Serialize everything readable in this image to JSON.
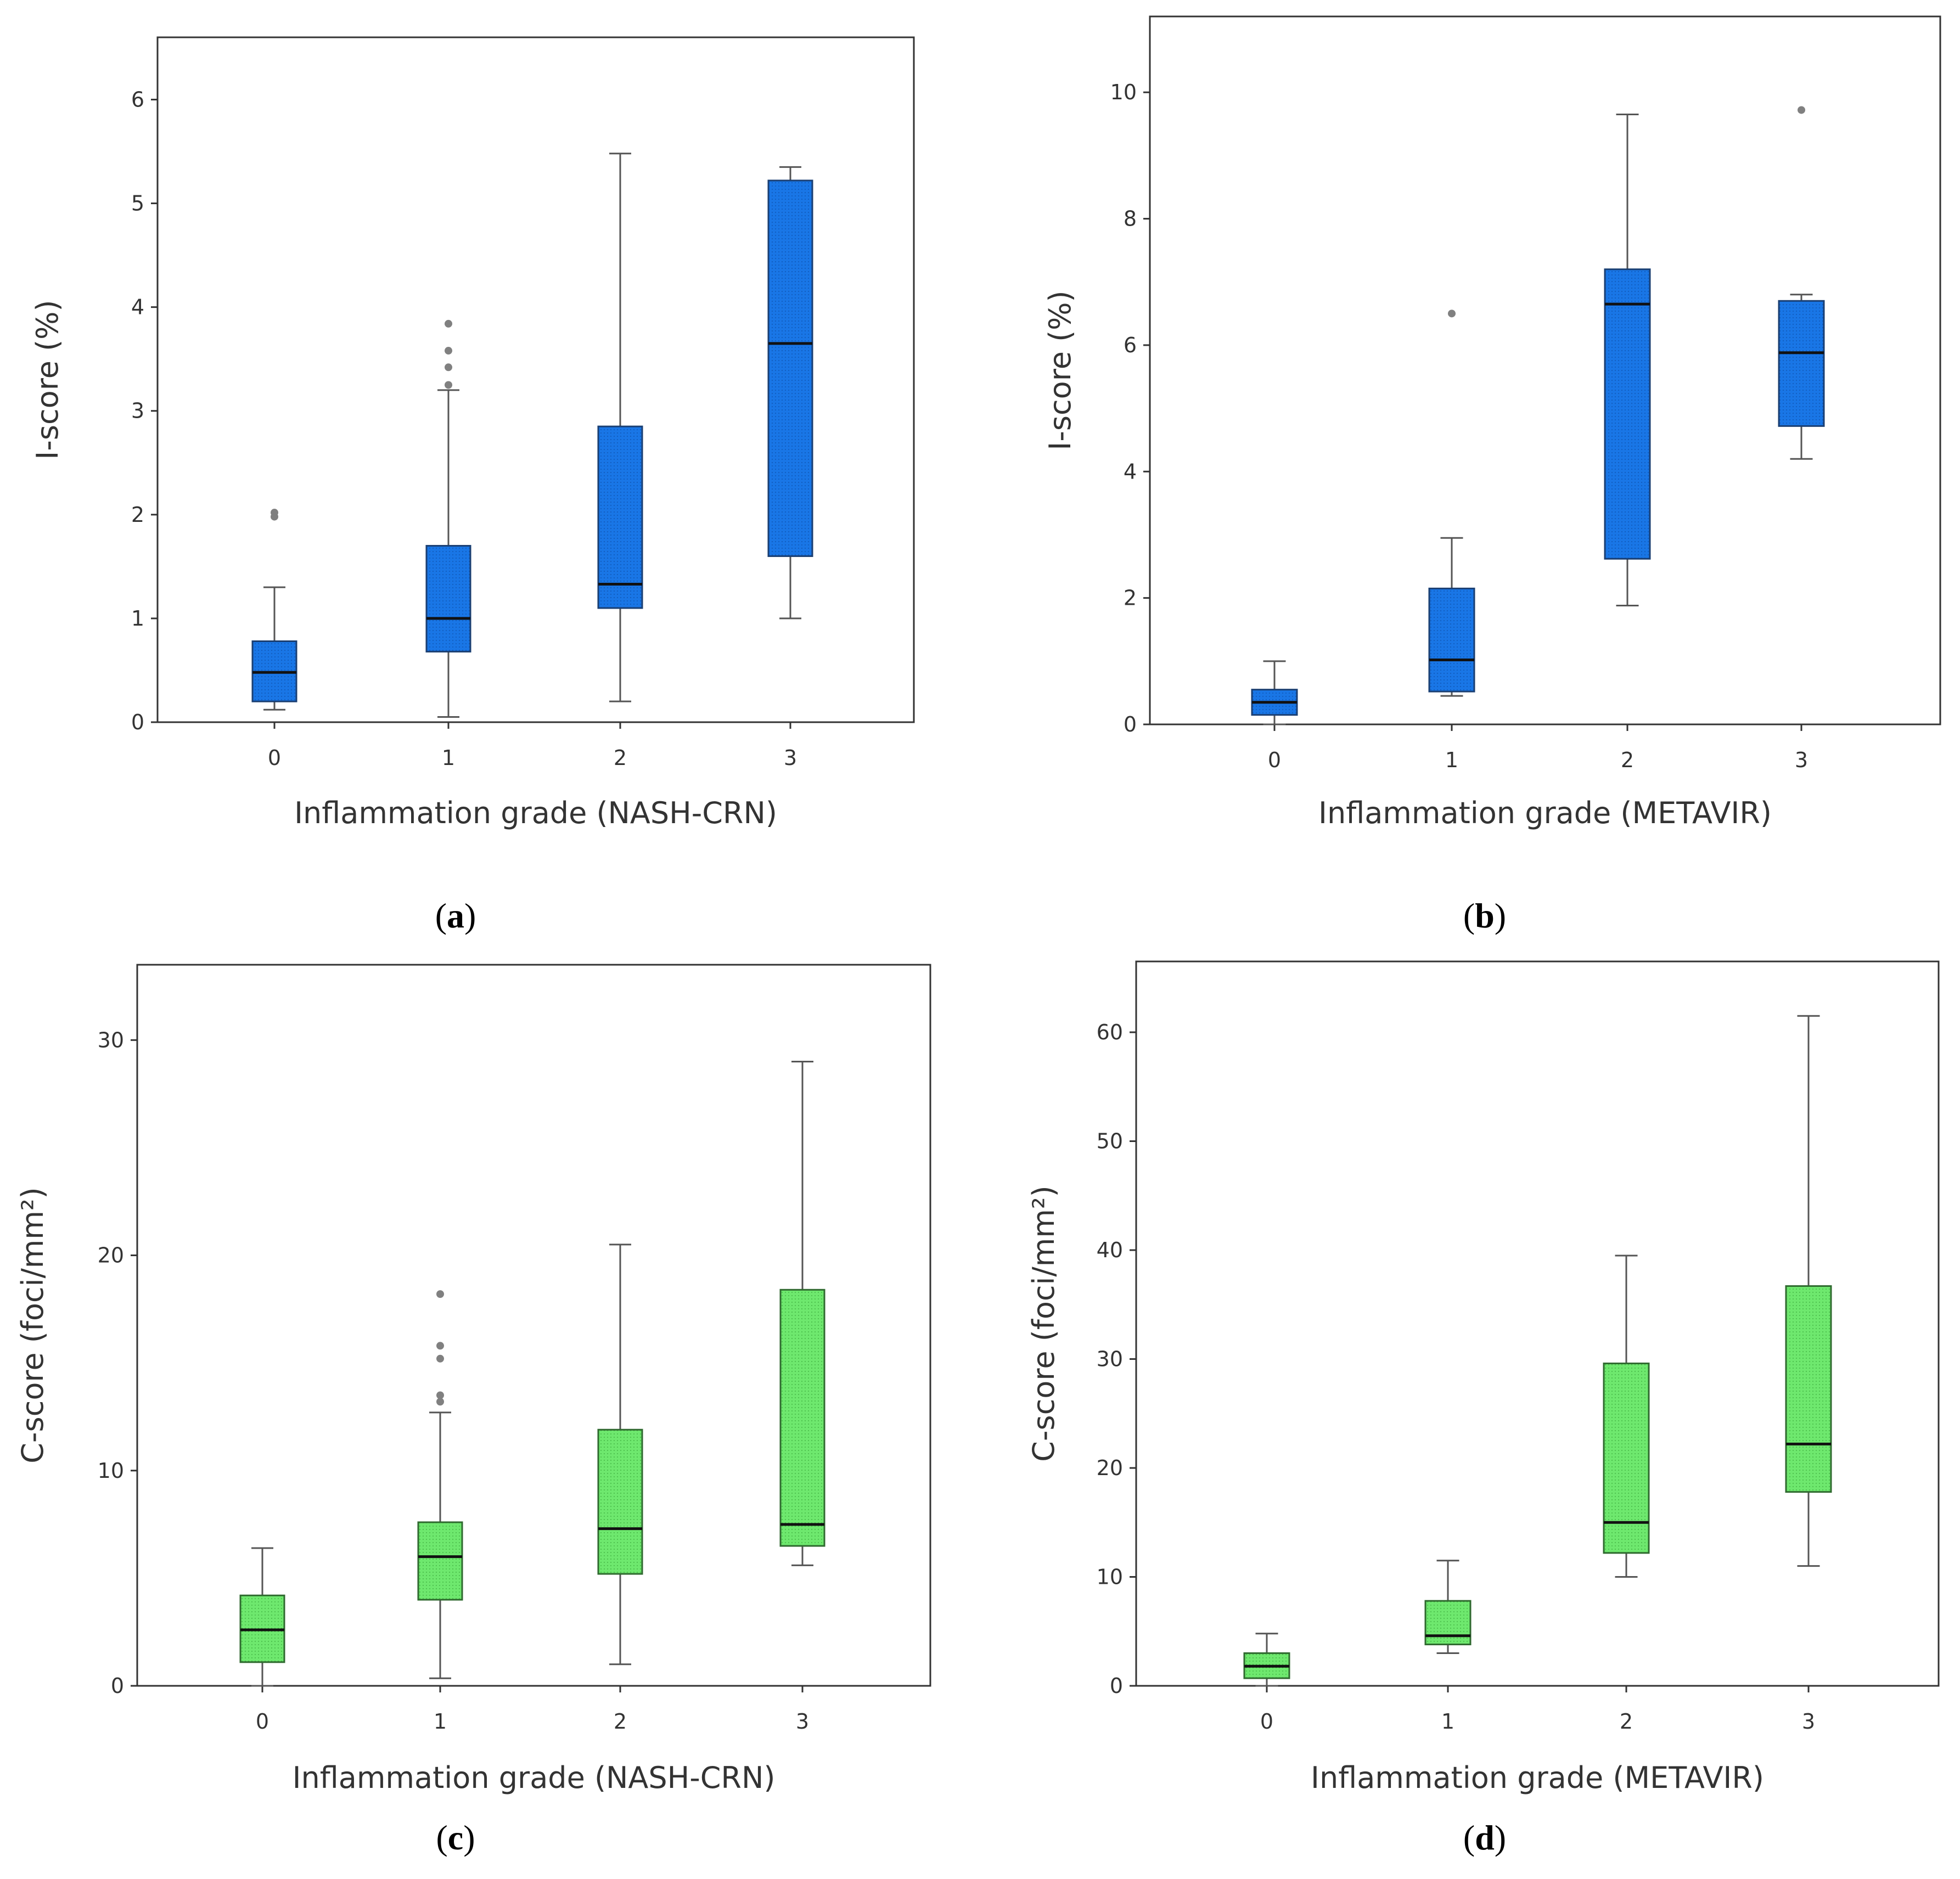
{
  "colors": {
    "blue_box": "#1976e6",
    "blue_stroke": "#1a3f73",
    "green_box": "#6ee86e",
    "green_stroke": "#2f6a2f",
    "whisker": "#555555",
    "outlier": "#808080",
    "median": "#111111",
    "frame": "#333333"
  },
  "chart_data": [
    {
      "type": "box",
      "panel": "a",
      "panel_label": "a",
      "xlabel": "Inflammation grade (NASH-CRN)",
      "ylabel": "I-score (%)",
      "ylim": [
        0,
        6.6
      ],
      "yticks": [
        0,
        1,
        2,
        3,
        4,
        5,
        6
      ],
      "categories": [
        "0",
        "1",
        "2",
        "3"
      ],
      "color": "blue",
      "boxes": [
        {
          "category": "0",
          "whisker_low": 0.12,
          "q1": 0.2,
          "median": 0.48,
          "q3": 0.78,
          "whisker_high": 1.3,
          "outliers": [
            1.98,
            2.02
          ]
        },
        {
          "category": "1",
          "whisker_low": 0.05,
          "q1": 0.68,
          "median": 1.0,
          "q3": 1.7,
          "whisker_high": 3.2,
          "outliers": [
            3.25,
            3.42,
            3.58,
            3.84
          ]
        },
        {
          "category": "2",
          "whisker_low": 0.2,
          "q1": 1.1,
          "median": 1.33,
          "q3": 2.85,
          "whisker_high": 5.48,
          "outliers": []
        },
        {
          "category": "3",
          "whisker_low": 1.0,
          "q1": 1.6,
          "median": 3.65,
          "q3": 5.22,
          "whisker_high": 5.35,
          "outliers": []
        }
      ]
    },
    {
      "type": "box",
      "panel": "b",
      "panel_label": "b",
      "xlabel": "Inflammation grade (METAVIR)",
      "ylabel": "I-score (%)",
      "ylim": [
        0,
        11.2
      ],
      "yticks": [
        0,
        2,
        4,
        6,
        8,
        10
      ],
      "categories": [
        "0",
        "1",
        "2",
        "3"
      ],
      "color": "blue",
      "boxes": [
        {
          "category": "0",
          "whisker_low": 0.0,
          "q1": 0.15,
          "median": 0.35,
          "q3": 0.55,
          "whisker_high": 1.0,
          "outliers": []
        },
        {
          "category": "1",
          "whisker_low": 0.45,
          "q1": 0.52,
          "median": 1.02,
          "q3": 2.15,
          "whisker_high": 2.95,
          "outliers": [
            6.5
          ]
        },
        {
          "category": "2",
          "whisker_low": 1.88,
          "q1": 2.62,
          "median": 6.65,
          "q3": 7.2,
          "whisker_high": 9.65,
          "outliers": []
        },
        {
          "category": "3",
          "whisker_low": 4.2,
          "q1": 4.72,
          "median": 5.88,
          "q3": 6.7,
          "whisker_high": 6.8,
          "outliers": [
            9.72
          ]
        }
      ]
    },
    {
      "type": "box",
      "panel": "c",
      "panel_label": "c",
      "xlabel": "Inflammation grade (NASH-CRN)",
      "ylabel": "C-score (foci/mm²)",
      "ylim": [
        0,
        33.5
      ],
      "yticks": [
        0,
        10,
        20,
        30
      ],
      "categories": [
        "0",
        "1",
        "2",
        "3"
      ],
      "color": "green",
      "boxes": [
        {
          "category": "0",
          "whisker_low": 0.0,
          "q1": 1.1,
          "median": 2.6,
          "q3": 4.2,
          "whisker_high": 6.4,
          "outliers": []
        },
        {
          "category": "1",
          "whisker_low": 0.35,
          "q1": 4.0,
          "median": 6.0,
          "q3": 7.6,
          "whisker_high": 12.7,
          "outliers": [
            13.2,
            13.5,
            15.2,
            15.8,
            18.2
          ]
        },
        {
          "category": "2",
          "whisker_low": 1.0,
          "q1": 5.2,
          "median": 7.3,
          "q3": 11.9,
          "whisker_high": 20.5,
          "outliers": []
        },
        {
          "category": "3",
          "whisker_low": 5.6,
          "q1": 6.5,
          "median": 7.5,
          "q3": 18.4,
          "whisker_high": 29.0,
          "outliers": []
        }
      ]
    },
    {
      "type": "box",
      "panel": "d",
      "panel_label": "d",
      "xlabel": "Inflammation grade (METAVIR)",
      "ylabel": "C-score (foci/mm²)",
      "ylim": [
        0,
        66.5
      ],
      "yticks": [
        0,
        10,
        20,
        30,
        40,
        50,
        60
      ],
      "categories": [
        "0",
        "1",
        "2",
        "3"
      ],
      "color": "green",
      "boxes": [
        {
          "category": "0",
          "whisker_low": 0.0,
          "q1": 0.7,
          "median": 1.8,
          "q3": 3.0,
          "whisker_high": 4.8,
          "outliers": []
        },
        {
          "category": "1",
          "whisker_low": 3.0,
          "q1": 3.8,
          "median": 4.6,
          "q3": 7.8,
          "whisker_high": 11.5,
          "outliers": []
        },
        {
          "category": "2",
          "whisker_low": 10.0,
          "q1": 12.2,
          "median": 15.0,
          "q3": 29.6,
          "whisker_high": 39.5,
          "outliers": []
        },
        {
          "category": "3",
          "whisker_low": 11.0,
          "q1": 17.8,
          "median": 22.2,
          "q3": 36.7,
          "whisker_high": 61.5,
          "outliers": []
        }
      ]
    }
  ]
}
